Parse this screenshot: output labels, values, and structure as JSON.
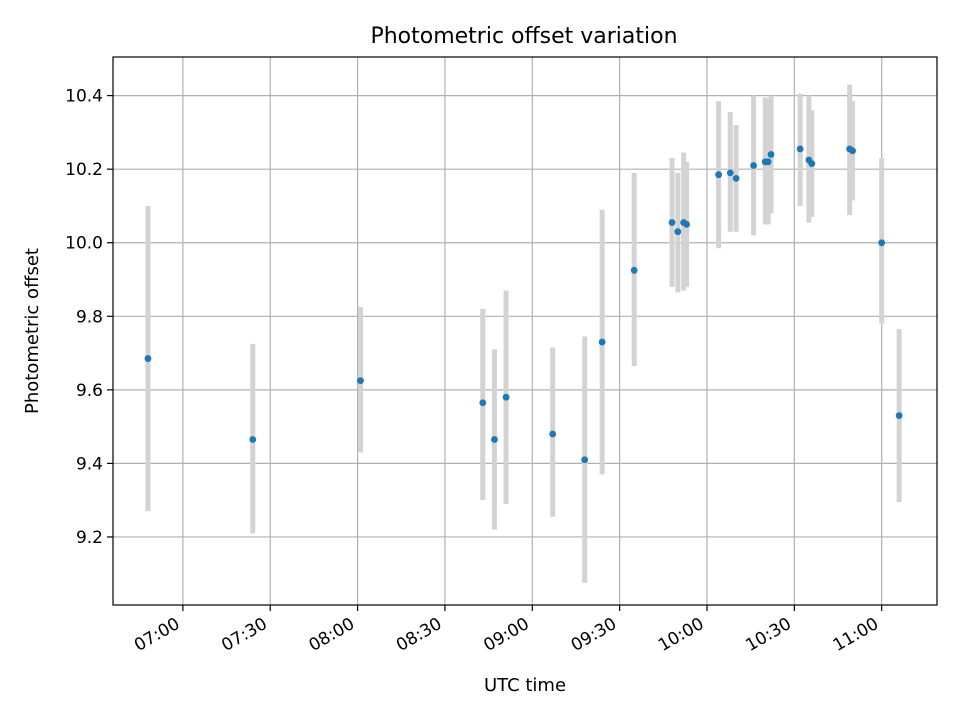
{
  "chart_data": {
    "type": "scatter",
    "title": "Photometric offset variation",
    "xlabel": "UTC time",
    "ylabel": "Photometric offset",
    "x_ticks": [
      "07:00",
      "07:30",
      "08:00",
      "08:30",
      "09:00",
      "09:30",
      "10:00",
      "10:30",
      "11:00"
    ],
    "y_ticks": [
      "9.2",
      "9.4",
      "9.6",
      "9.8",
      "10.0",
      "10.2",
      "10.4"
    ],
    "xlim": [
      "06:36",
      "11:19"
    ],
    "ylim": [
      9.015,
      10.505
    ],
    "grid": true,
    "marker_color": "#1f77b4",
    "errorbar_color": "#d3d3d3",
    "points": [
      {
        "x": "06:48",
        "y": 9.685,
        "ylow": 9.27,
        "yhigh": 10.1
      },
      {
        "x": "07:24",
        "y": 9.465,
        "ylow": 9.21,
        "yhigh": 9.725
      },
      {
        "x": "08:01",
        "y": 9.625,
        "ylow": 9.43,
        "yhigh": 9.825
      },
      {
        "x": "08:43",
        "y": 9.565,
        "ylow": 9.3,
        "yhigh": 9.82
      },
      {
        "x": "08:47",
        "y": 9.465,
        "ylow": 9.22,
        "yhigh": 9.71
      },
      {
        "x": "08:51",
        "y": 9.58,
        "ylow": 9.29,
        "yhigh": 9.87
      },
      {
        "x": "09:07",
        "y": 9.48,
        "ylow": 9.255,
        "yhigh": 9.715
      },
      {
        "x": "09:18",
        "y": 9.41,
        "ylow": 9.075,
        "yhigh": 9.745
      },
      {
        "x": "09:24",
        "y": 9.73,
        "ylow": 9.37,
        "yhigh": 10.09
      },
      {
        "x": "09:35",
        "y": 9.925,
        "ylow": 9.665,
        "yhigh": 10.19
      },
      {
        "x": "09:48",
        "y": 10.055,
        "ylow": 9.88,
        "yhigh": 10.23
      },
      {
        "x": "09:50",
        "y": 10.03,
        "ylow": 9.865,
        "yhigh": 10.19
      },
      {
        "x": "09:52",
        "y": 10.055,
        "ylow": 9.87,
        "yhigh": 10.245
      },
      {
        "x": "09:53",
        "y": 10.05,
        "ylow": 9.88,
        "yhigh": 10.22
      },
      {
        "x": "10:04",
        "y": 10.185,
        "ylow": 9.985,
        "yhigh": 10.385
      },
      {
        "x": "10:08",
        "y": 10.19,
        "ylow": 10.03,
        "yhigh": 10.355
      },
      {
        "x": "10:10",
        "y": 10.175,
        "ylow": 10.03,
        "yhigh": 10.32
      },
      {
        "x": "10:16",
        "y": 10.21,
        "ylow": 10.02,
        "yhigh": 10.4
      },
      {
        "x": "10:20",
        "y": 10.22,
        "ylow": 10.05,
        "yhigh": 10.395
      },
      {
        "x": "10:21",
        "y": 10.22,
        "ylow": 10.05,
        "yhigh": 10.39
      },
      {
        "x": "10:22",
        "y": 10.24,
        "ylow": 10.08,
        "yhigh": 10.4
      },
      {
        "x": "10:32",
        "y": 10.255,
        "ylow": 10.1,
        "yhigh": 10.405
      },
      {
        "x": "10:35",
        "y": 10.225,
        "ylow": 10.055,
        "yhigh": 10.4
      },
      {
        "x": "10:36",
        "y": 10.215,
        "ylow": 10.07,
        "yhigh": 10.36
      },
      {
        "x": "10:49",
        "y": 10.255,
        "ylow": 10.075,
        "yhigh": 10.43
      },
      {
        "x": "10:50",
        "y": 10.25,
        "ylow": 10.115,
        "yhigh": 10.385
      },
      {
        "x": "11:00",
        "y": 10.0,
        "ylow": 9.78,
        "yhigh": 10.23
      },
      {
        "x": "11:06",
        "y": 9.53,
        "ylow": 9.295,
        "yhigh": 9.765
      }
    ]
  }
}
